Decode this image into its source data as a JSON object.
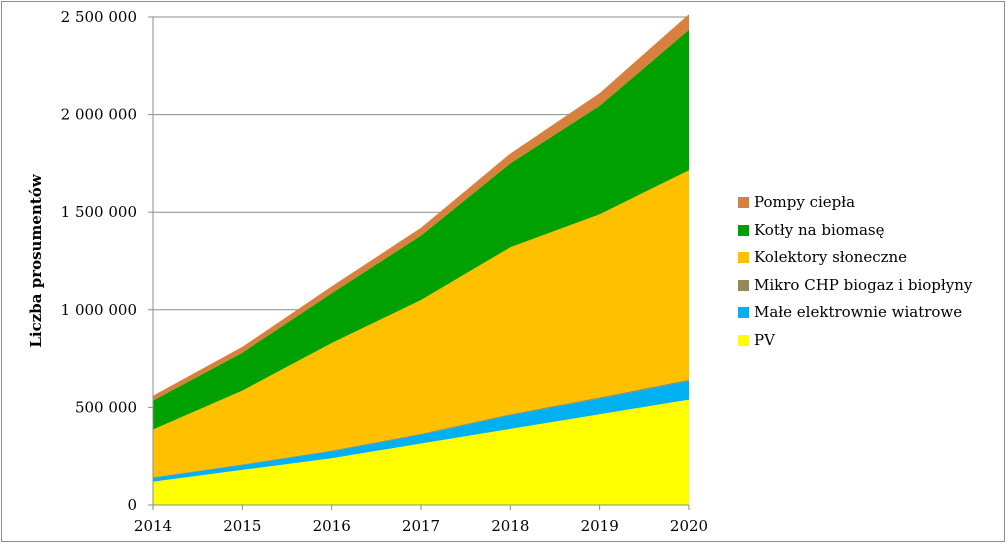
{
  "chart_data": {
    "type": "area",
    "stacked": true,
    "x": [
      "2014",
      "2015",
      "2016",
      "2017",
      "2018",
      "2019",
      "2020"
    ],
    "ylabel": "Liczba prosumentów",
    "xlabel": "",
    "title": "",
    "ylim": [
      0,
      2500000
    ],
    "yticks": [
      0,
      500000,
      1000000,
      1500000,
      2000000,
      2500000
    ],
    "ytick_labels": [
      "0",
      "500 000",
      "1 000 000",
      "1 500 000",
      "2 000 000",
      "2 500 000"
    ],
    "grid": "horizontal",
    "legend_position": "right",
    "series": [
      {
        "name": "PV",
        "color": "#FFFF00",
        "values": [
          120000,
          180000,
          240000,
          315000,
          390000,
          465000,
          540000
        ]
      },
      {
        "name": "Małe elektrownie wiatrowe",
        "color": "#00B0F0",
        "values": [
          20000,
          25000,
          35000,
          45000,
          70000,
          80000,
          95000
        ]
      },
      {
        "name": "Mikro CHP biogaz i biopłyny",
        "color": "#948A54",
        "values": [
          2000,
          3000,
          4000,
          5000,
          5000,
          6000,
          7000
        ]
      },
      {
        "name": "Kolektory słoneczne",
        "color": "#FFC000",
        "values": [
          245000,
          378000,
          551000,
          685000,
          855000,
          939000,
          1073000
        ]
      },
      {
        "name": "Kotły na biomasę",
        "color": "#00A000",
        "values": [
          148000,
          194000,
          255000,
          330000,
          430000,
          555000,
          720000
        ]
      },
      {
        "name": "Pompy ciepła",
        "color": "#D8813E",
        "values": [
          25000,
          30000,
          35000,
          40000,
          50000,
          65000,
          80000
        ]
      }
    ]
  },
  "legend": {
    "items": [
      {
        "label": "Pompy ciepła",
        "color": "#D8813E"
      },
      {
        "label": "Kotły na biomasę",
        "color": "#00A000"
      },
      {
        "label": "Kolektory słoneczne",
        "color": "#FFC000"
      },
      {
        "label": "Mikro CHP biogaz i biopłyny",
        "color": "#948A54"
      },
      {
        "label": "Małe elektrownie wiatrowe",
        "color": "#00B0F0"
      },
      {
        "label": "PV",
        "color": "#FFFF00"
      }
    ]
  }
}
